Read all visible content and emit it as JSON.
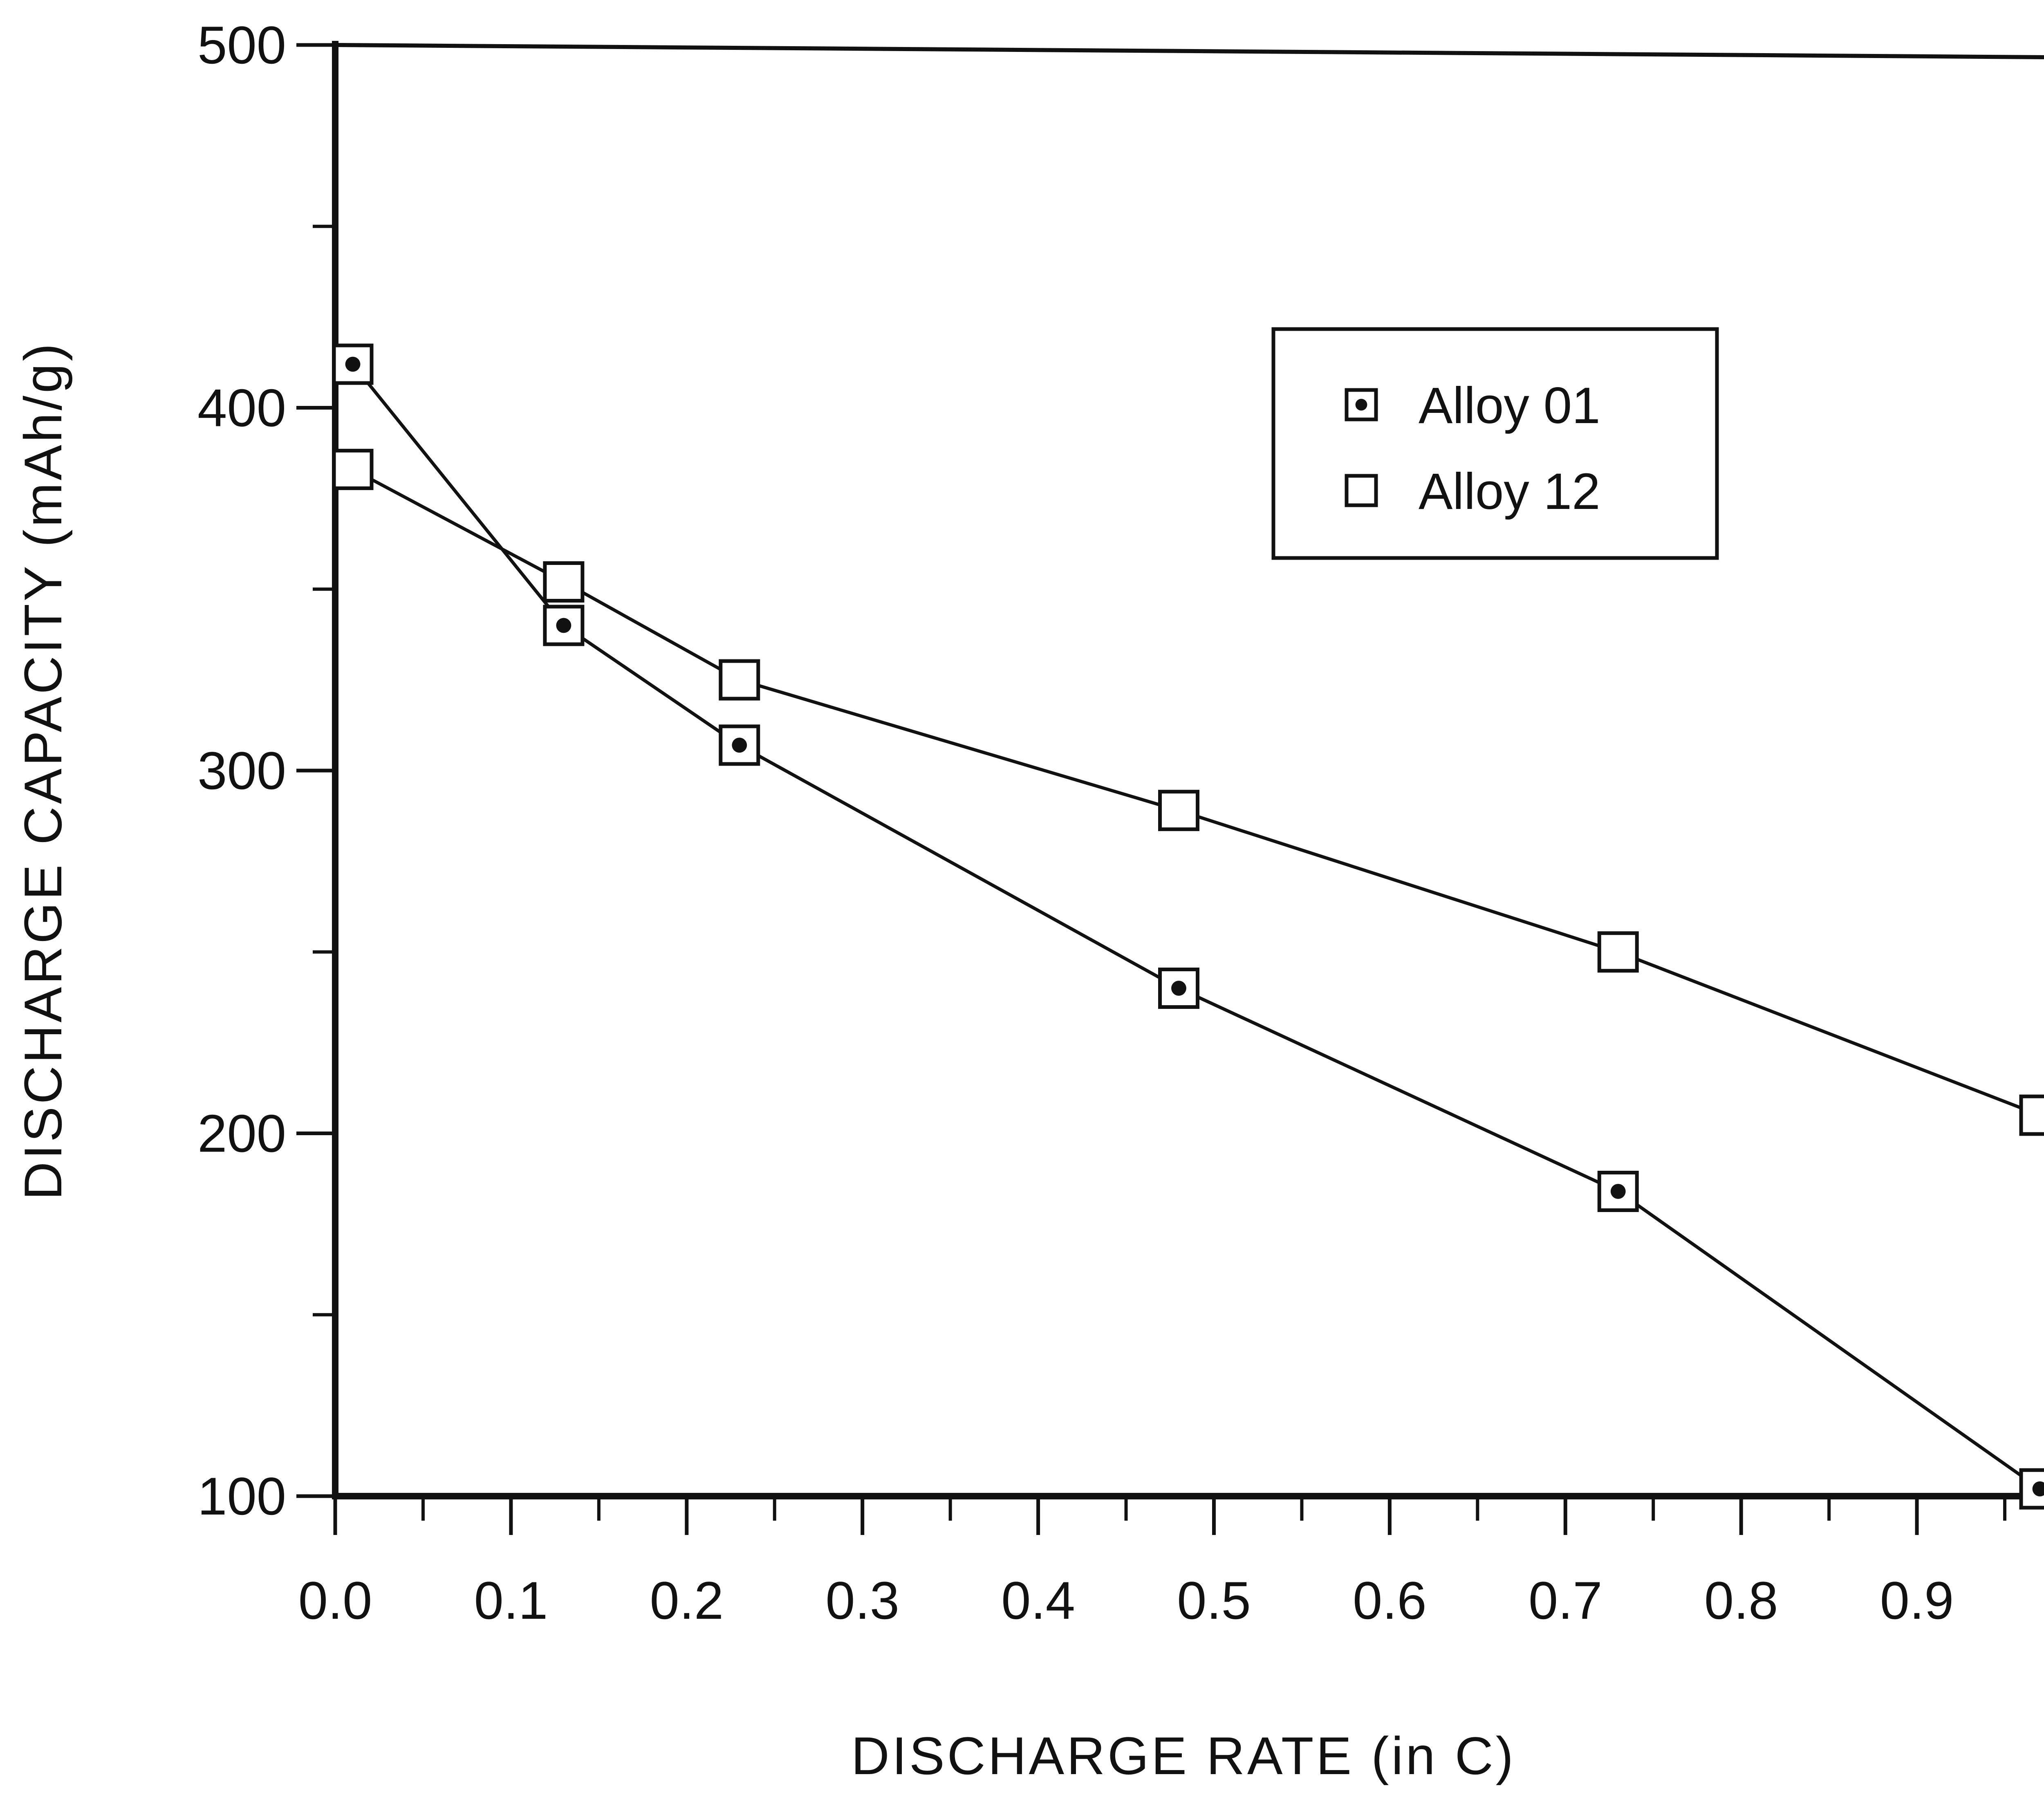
{
  "chart_data": {
    "type": "line",
    "title": "",
    "xlabel": "DISCHARGE RATE (in C)",
    "ylabel": "DISCHARGE CAPACITY (mAh/g)",
    "xlim": [
      0.0,
      0.97
    ],
    "ylim": [
      100,
      500
    ],
    "x_ticks": [
      0.0,
      0.1,
      0.2,
      0.3,
      0.4,
      0.5,
      0.6,
      0.7,
      0.8,
      0.9
    ],
    "x_tick_labels": [
      "0.0",
      "0.1",
      "0.2",
      "0.3",
      "0.4",
      "0.5",
      "0.6",
      "0.7",
      "0.8",
      "0.9"
    ],
    "y_ticks": [
      100,
      200,
      300,
      400,
      500
    ],
    "y_tick_labels": [
      "100",
      "200",
      "300",
      "400",
      "500"
    ],
    "grid": false,
    "legend_position": "upper-right",
    "series": [
      {
        "name": "Alloy 01",
        "marker": "dotted-square",
        "x": [
          0.01,
          0.13,
          0.23,
          0.48,
          0.73,
          0.97
        ],
        "y": [
          412,
          340,
          307,
          240,
          184,
          102
        ]
      },
      {
        "name": "Alloy 12",
        "marker": "open-square",
        "x": [
          0.01,
          0.13,
          0.23,
          0.48,
          0.73,
          0.97
        ],
        "y": [
          383,
          352,
          325,
          289,
          250,
          205
        ]
      }
    ],
    "colors": {
      "ink": "#111111",
      "background": "#ffffff"
    }
  }
}
